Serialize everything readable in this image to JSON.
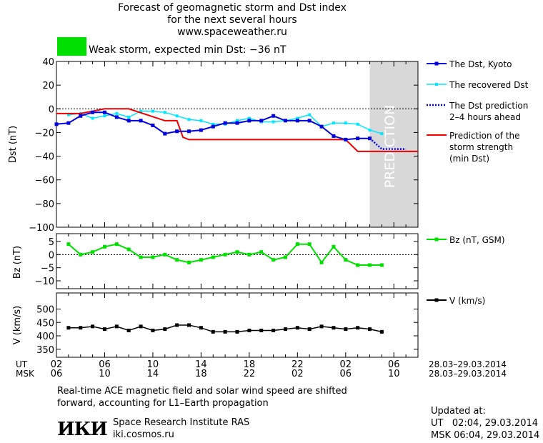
{
  "header": {
    "title_line1": "Forecast of geomagnetic storm and Dst index",
    "title_line2": "for the next several hours",
    "website": "www.spaceweather.ru",
    "storm_label": "Weak storm, expected min Dst: −36 nT",
    "storm_color": "#00e000"
  },
  "prediction_label": "PREDICTION",
  "time_axis": {
    "ut_label": "UT",
    "msk_label": "MSK",
    "ut_ticks": [
      "02",
      "06",
      "10",
      "14",
      "18",
      "22",
      "02",
      "06"
    ],
    "msk_ticks": [
      "06",
      "10",
      "14",
      "18",
      "22",
      "02",
      "06",
      "10"
    ],
    "ut_range": "28.03–29.03.2014",
    "msk_range": "28.03–29.03.2014"
  },
  "footer": {
    "note_line1": "Real-time ACE magnetic field and solar wind speed are shifted",
    "note_line2": "forward, accounting for L1–Earth propagation",
    "logo_text": "ИКИ",
    "institute": "Space Research Institute RAS",
    "institute_site": "iki.cosmos.ru",
    "updated_label": "Updated at:",
    "updated_ut": "UT   02:04, 29.03.2014",
    "updated_msk": "MSK 06:04, 29.03.2014"
  },
  "colors": {
    "dst_kyoto": "#0000dd",
    "dst_recovered": "#00e8ff",
    "dst_prediction": "#0000dd",
    "storm_strength": "#ee0000",
    "bz": "#00e000",
    "v": "#000000",
    "prediction_band": "#d8d8d8"
  },
  "chart_data": [
    {
      "type": "line",
      "ylabel": "Dst (nT)",
      "ylim": [
        -100,
        40
      ],
      "yticks": [
        "40",
        "20",
        "0",
        "−20",
        "−40",
        "−60",
        "−80",
        "−100"
      ],
      "xlim_hours": [
        0,
        30
      ],
      "prediction_start_hour": 26,
      "series": [
        {
          "name": "The Dst, Kyoto",
          "x": [
            0,
            1,
            2,
            3,
            4,
            5,
            6,
            7,
            8,
            9,
            10,
            11,
            12,
            13,
            14,
            15,
            16,
            17,
            18,
            19,
            20,
            21,
            22,
            23,
            24,
            25,
            26
          ],
          "values": [
            -13,
            -12,
            -6,
            -3,
            -3,
            -7,
            -10,
            -10,
            -14,
            -21,
            -19,
            -19,
            -18,
            -15,
            -12,
            -12,
            -10,
            -10,
            -6,
            -10,
            -10,
            -10,
            -15,
            -23,
            -26,
            -25,
            -25
          ]
        },
        {
          "name": "The recovered Dst",
          "x": [
            1,
            2,
            3,
            4,
            5,
            6,
            7,
            8,
            9,
            10,
            11,
            12,
            13,
            14,
            15,
            16,
            17,
            18,
            19,
            20,
            21,
            22,
            23,
            24,
            25,
            26,
            27
          ],
          "values": [
            -5,
            -4,
            -8,
            -6,
            -4,
            -7,
            -2,
            -2,
            -3,
            -6,
            -9,
            -10,
            -13,
            -13,
            -10,
            -8,
            -11,
            -11,
            -10,
            -8,
            -5,
            -15,
            -12,
            -12,
            -13,
            -18,
            -21
          ]
        },
        {
          "name": "The Dst prediction 2–4 hours ahead",
          "x": [
            26,
            27,
            28,
            29
          ],
          "values": [
            -25,
            -34,
            -34,
            -34
          ]
        },
        {
          "name": "Prediction of the storm strength (min Dst)",
          "x": [
            0,
            2,
            4,
            6,
            9,
            10,
            10.5,
            11,
            24,
            25,
            30
          ],
          "values": [
            -4,
            -4,
            0,
            0,
            -10,
            -10,
            -24,
            -26,
            -26,
            -36,
            -36
          ]
        }
      ],
      "legend": [
        {
          "lines": [
            "The Dst, Kyoto"
          ],
          "style": "marker"
        },
        {
          "lines": [
            "The recovered Dst"
          ],
          "style": "marker"
        },
        {
          "lines": [
            "The Dst prediction",
            "2–4 hours ahead"
          ],
          "style": "dotted"
        },
        {
          "lines": [
            "Prediction of the",
            "storm strength",
            "(min Dst)"
          ],
          "style": "solid"
        }
      ]
    },
    {
      "type": "line",
      "ylabel": "Bz (nT)",
      "ylim": [
        -13,
        8
      ],
      "yticks": [
        "5",
        "0",
        "−5",
        "−10"
      ],
      "series": [
        {
          "name": "Bz (nT, GSM)",
          "x": [
            1,
            2,
            3,
            4,
            5,
            6,
            7,
            8,
            9,
            10,
            11,
            12,
            13,
            14,
            15,
            16,
            17,
            18,
            19,
            20,
            21,
            22,
            23,
            24,
            25,
            26,
            27
          ],
          "values": [
            4,
            0,
            1,
            3,
            4,
            2,
            -1,
            -1,
            0,
            -2,
            -3,
            -2,
            -1,
            0,
            1,
            0,
            1,
            -2,
            -1,
            4,
            4,
            -3,
            3,
            -2,
            -4,
            -4,
            -4
          ]
        }
      ]
    },
    {
      "type": "line",
      "ylabel": "V (km/s)",
      "ylim": [
        320,
        560
      ],
      "yticks": [
        "500",
        "450",
        "400",
        "350"
      ],
      "series": [
        {
          "name": "V (km/s)",
          "x": [
            1,
            2,
            3,
            4,
            5,
            6,
            7,
            8,
            9,
            10,
            11,
            12,
            13,
            14,
            15,
            16,
            17,
            18,
            19,
            20,
            21,
            22,
            23,
            24,
            25,
            26,
            27
          ],
          "values": [
            430,
            430,
            435,
            425,
            435,
            420,
            435,
            420,
            425,
            440,
            440,
            430,
            415,
            415,
            415,
            420,
            420,
            420,
            425,
            430,
            425,
            435,
            430,
            425,
            430,
            425,
            415
          ]
        }
      ]
    }
  ]
}
